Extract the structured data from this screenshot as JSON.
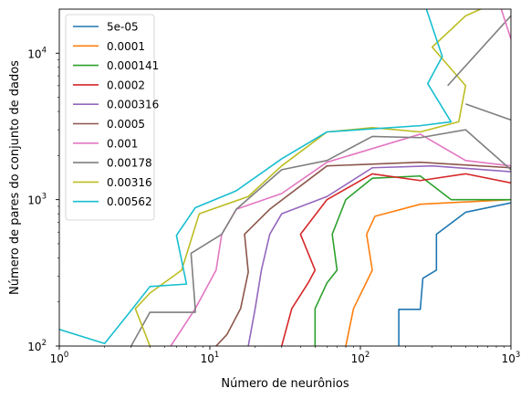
{
  "chart_data": {
    "type": "line",
    "xlabel": "Número de neurônios",
    "ylabel": "Número de pares do conjunto de dados",
    "xscale": "log",
    "yscale": "log",
    "xlim": [
      1,
      1000
    ],
    "ylim": [
      100,
      20000
    ],
    "x_ticks": [
      {
        "value": 1,
        "base": "10",
        "exp": "0"
      },
      {
        "value": 10,
        "base": "10",
        "exp": "1"
      },
      {
        "value": 100,
        "base": "10",
        "exp": "2"
      },
      {
        "value": 1000,
        "base": "10",
        "exp": "3"
      }
    ],
    "y_ticks": [
      {
        "value": 100,
        "base": "10",
        "exp": "2"
      },
      {
        "value": 1000,
        "base": "10",
        "exp": "3"
      },
      {
        "value": 10000,
        "base": "10",
        "exp": "4"
      }
    ],
    "legend_position": "upper-left",
    "grid": false,
    "series": [
      {
        "name": "5e-05",
        "color": "#1f77b4",
        "points": [
          [
            180,
            100
          ],
          [
            180,
            178
          ],
          [
            250,
            178
          ],
          [
            260,
            290
          ],
          [
            320,
            330
          ],
          [
            320,
            580
          ],
          [
            500,
            820
          ],
          [
            1000,
            950
          ]
        ]
      },
      {
        "name": "0.0001",
        "color": "#ff7f0e",
        "points": [
          [
            80,
            100
          ],
          [
            90,
            180
          ],
          [
            120,
            330
          ],
          [
            110,
            580
          ],
          [
            125,
            770
          ],
          [
            250,
            930
          ],
          [
            1000,
            1000
          ]
        ]
      },
      {
        "name": "0.000141",
        "color": "#2ca02c",
        "points": [
          [
            50,
            100
          ],
          [
            50,
            180
          ],
          [
            60,
            270
          ],
          [
            70,
            330
          ],
          [
            65,
            580
          ],
          [
            80,
            1000
          ],
          [
            120,
            1400
          ],
          [
            250,
            1450
          ],
          [
            400,
            1000
          ],
          [
            1000,
            1000
          ]
        ]
      },
      {
        "name": "0.0002",
        "color": "#d62728",
        "points": [
          [
            30,
            100
          ],
          [
            35,
            180
          ],
          [
            45,
            270
          ],
          [
            50,
            330
          ],
          [
            40,
            580
          ],
          [
            60,
            1000
          ],
          [
            120,
            1500
          ],
          [
            250,
            1350
          ],
          [
            500,
            1500
          ],
          [
            1000,
            1300
          ]
        ]
      },
      {
        "name": "0.000316",
        "color": "#9467bd",
        "points": [
          [
            18,
            100
          ],
          [
            20,
            180
          ],
          [
            22,
            330
          ],
          [
            25,
            580
          ],
          [
            30,
            800
          ],
          [
            60,
            1050
          ],
          [
            120,
            1650
          ],
          [
            300,
            1700
          ],
          [
            1000,
            1550
          ]
        ]
      },
      {
        "name": "0.0005",
        "color": "#8c564b",
        "points": [
          [
            11,
            100
          ],
          [
            13,
            120
          ],
          [
            16,
            180
          ],
          [
            18,
            320
          ],
          [
            17,
            580
          ],
          [
            25,
            860
          ],
          [
            60,
            1700
          ],
          [
            250,
            1800
          ],
          [
            1000,
            1650
          ]
        ]
      },
      {
        "name": "0.001",
        "color": "#e377c2",
        "points": [
          [
            5.5,
            100
          ],
          [
            8,
            180
          ],
          [
            11,
            330
          ],
          [
            12,
            580
          ],
          [
            15,
            860
          ],
          [
            30,
            1100
          ],
          [
            60,
            1800
          ],
          [
            250,
            2800
          ],
          [
            500,
            1850
          ],
          [
            1000,
            1700
          ]
        ]
      },
      {
        "name": "0.00178",
        "color": "#7f7f7f",
        "points": [
          [
            3,
            100
          ],
          [
            4,
            170
          ],
          [
            8,
            170
          ],
          [
            8,
            180
          ],
          [
            7.5,
            430
          ],
          [
            12,
            580
          ],
          [
            15,
            860
          ],
          [
            30,
            1600
          ],
          [
            60,
            1850
          ],
          [
            120,
            2700
          ],
          [
            250,
            2650
          ],
          [
            500,
            3000
          ],
          [
            1000,
            1600
          ]
        ]
      },
      {
        "name": "0.00316",
        "color": "#bcbd22",
        "points": [
          [
            4,
            100
          ],
          [
            3.2,
            180
          ],
          [
            4,
            230
          ],
          [
            6.5,
            330
          ],
          [
            8.5,
            800
          ],
          [
            18,
            1050
          ],
          [
            30,
            1700
          ],
          [
            60,
            2900
          ],
          [
            120,
            3100
          ],
          [
            250,
            2900
          ],
          [
            450,
            3400
          ],
          [
            500,
            6000
          ],
          [
            300,
            11000
          ],
          [
            500,
            18000
          ],
          [
            700,
            21000
          ]
        ]
      },
      {
        "name": "0.00562",
        "color": "#17becf",
        "points": [
          [
            1,
            130
          ],
          [
            2,
            104
          ],
          [
            3,
            175
          ],
          [
            4,
            255
          ],
          [
            7,
            265
          ],
          [
            6,
            570
          ],
          [
            8,
            880
          ],
          [
            15,
            1150
          ],
          [
            30,
            1900
          ],
          [
            60,
            2900
          ],
          [
            250,
            3200
          ],
          [
            400,
            3400
          ],
          [
            280,
            6200
          ],
          [
            350,
            9500
          ],
          [
            270,
            21000
          ]
        ]
      },
      {
        "name": "",
        "color": "#7f7f7f",
        "points": [
          [
            380,
            6000
          ],
          [
            1000,
            18000
          ]
        ]
      },
      {
        "name": "",
        "color": "#7f7f7f",
        "points": [
          [
            500,
            4500
          ],
          [
            1000,
            3500
          ]
        ]
      },
      {
        "name": "",
        "color": "#e377c2",
        "points": [
          [
            850,
            21000
          ],
          [
            1000,
            12500
          ]
        ]
      }
    ]
  }
}
